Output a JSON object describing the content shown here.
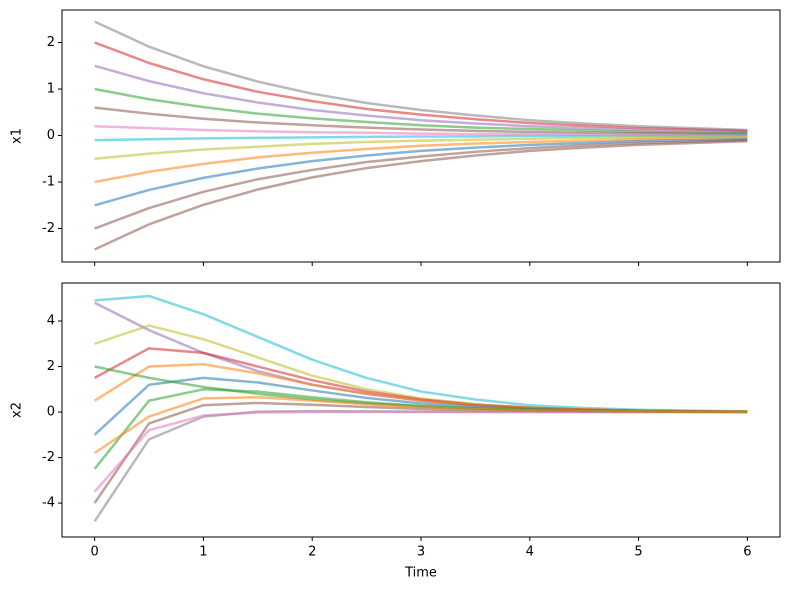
{
  "chart_data": [
    {
      "type": "line",
      "ylabel": "x1",
      "show_xtick_labels": false,
      "x": [
        0,
        0.5,
        1,
        1.5,
        2,
        2.5,
        3,
        3.5,
        4,
        4.5,
        5,
        5.5,
        6
      ],
      "xlim": [
        -0.3,
        6.3
      ],
      "xticks": [
        0,
        1,
        2,
        3,
        4,
        5,
        6
      ],
      "ylim": [
        -2.72,
        2.7
      ],
      "yticks": [
        -2,
        -1,
        0,
        1,
        2
      ],
      "series": [
        {
          "color": "#7f7f7f",
          "values": [
            2.45,
            1.91,
            1.49,
            1.16,
            0.9,
            0.7,
            0.55,
            0.43,
            0.33,
            0.26,
            0.2,
            0.16,
            0.12
          ]
        },
        {
          "color": "#d62728",
          "values": [
            2.0,
            1.56,
            1.21,
            0.94,
            0.74,
            0.57,
            0.45,
            0.35,
            0.27,
            0.21,
            0.16,
            0.13,
            0.1
          ]
        },
        {
          "color": "#9467bd",
          "values": [
            1.5,
            1.17,
            0.91,
            0.71,
            0.55,
            0.43,
            0.33,
            0.26,
            0.2,
            0.16,
            0.12,
            0.1,
            0.08
          ]
        },
        {
          "color": "#2ca02c",
          "values": [
            1.0,
            0.78,
            0.61,
            0.47,
            0.37,
            0.29,
            0.22,
            0.17,
            0.14,
            0.11,
            0.08,
            0.06,
            0.05
          ]
        },
        {
          "color": "#8c564b",
          "values": [
            0.6,
            0.47,
            0.36,
            0.28,
            0.22,
            0.17,
            0.13,
            0.1,
            0.08,
            0.06,
            0.05,
            0.04,
            0.03
          ]
        },
        {
          "color": "#e377c2",
          "values": [
            0.2,
            0.16,
            0.12,
            0.09,
            0.07,
            0.06,
            0.04,
            0.03,
            0.03,
            0.02,
            0.02,
            0.01,
            0.01
          ]
        },
        {
          "color": "#17becf",
          "values": [
            -0.1,
            -0.08,
            -0.06,
            -0.05,
            -0.04,
            -0.03,
            -0.02,
            -0.02,
            -0.01,
            -0.01,
            -0.01,
            -0.01,
            0
          ]
        },
        {
          "color": "#bcbd22",
          "values": [
            -0.5,
            -0.39,
            -0.3,
            -0.24,
            -0.18,
            -0.14,
            -0.11,
            -0.09,
            -0.07,
            -0.05,
            -0.04,
            -0.03,
            -0.03
          ]
        },
        {
          "color": "#ff7f0e",
          "values": [
            -1.0,
            -0.78,
            -0.61,
            -0.47,
            -0.37,
            -0.29,
            -0.22,
            -0.17,
            -0.14,
            -0.11,
            -0.08,
            -0.06,
            -0.05
          ]
        },
        {
          "color": "#1f77b4",
          "values": [
            -1.5,
            -1.17,
            -0.91,
            -0.71,
            -0.55,
            -0.43,
            -0.33,
            -0.26,
            -0.2,
            -0.16,
            -0.12,
            -0.1,
            -0.08
          ]
        },
        {
          "color": "#8c564b",
          "values": [
            -2.0,
            -1.56,
            -1.21,
            -0.94,
            -0.74,
            -0.57,
            -0.45,
            -0.35,
            -0.27,
            -0.21,
            -0.16,
            -0.13,
            -0.1
          ]
        },
        {
          "color": "#8c564b",
          "values": [
            -2.45,
            -1.91,
            -1.49,
            -1.16,
            -0.9,
            -0.7,
            -0.55,
            -0.43,
            -0.33,
            -0.26,
            -0.2,
            -0.16,
            -0.12
          ]
        }
      ]
    },
    {
      "type": "line",
      "ylabel": "x2",
      "xlabel": "Time",
      "show_xtick_labels": true,
      "x": [
        0,
        0.5,
        1,
        1.5,
        2,
        2.5,
        3,
        3.5,
        4,
        4.5,
        5,
        5.5,
        6
      ],
      "xlim": [
        -0.3,
        6.3
      ],
      "xticks": [
        0,
        1,
        2,
        3,
        4,
        5,
        6
      ],
      "ylim": [
        -5.49,
        5.67
      ],
      "yticks": [
        -4,
        -2,
        0,
        2,
        4
      ],
      "series": [
        {
          "color": "#17becf",
          "values": [
            4.9,
            5.1,
            4.3,
            3.3,
            2.3,
            1.5,
            0.9,
            0.55,
            0.3,
            0.18,
            0.1,
            0.06,
            0.03
          ]
        },
        {
          "color": "#9467bd",
          "values": [
            4.8,
            3.6,
            2.6,
            1.8,
            1.2,
            0.8,
            0.5,
            0.3,
            0.18,
            0.1,
            0.06,
            0.03,
            0.02
          ]
        },
        {
          "color": "#bcbd22",
          "values": [
            3.0,
            3.8,
            3.2,
            2.4,
            1.6,
            1.0,
            0.6,
            0.35,
            0.2,
            0.12,
            0.07,
            0.04,
            0.02
          ]
        },
        {
          "color": "#d62728",
          "values": [
            1.5,
            2.8,
            2.6,
            2.0,
            1.4,
            0.9,
            0.55,
            0.32,
            0.19,
            0.11,
            0.06,
            0.03,
            0.02
          ]
        },
        {
          "color": "#ff7f0e",
          "values": [
            0.5,
            2.0,
            2.1,
            1.7,
            1.2,
            0.8,
            0.5,
            0.3,
            0.17,
            0.1,
            0.06,
            0.03,
            0.02
          ]
        },
        {
          "color": "#1f77b4",
          "values": [
            -1.0,
            1.2,
            1.5,
            1.3,
            0.95,
            0.62,
            0.38,
            0.23,
            0.13,
            0.08,
            0.04,
            0.02,
            0.01
          ]
        },
        {
          "color": "#2ca02c",
          "values": [
            -2.5,
            0.5,
            1.0,
            0.9,
            0.65,
            0.43,
            0.27,
            0.16,
            0.09,
            0.05,
            0.03,
            0.02,
            0.01
          ]
        },
        {
          "color": "#8c564b",
          "values": [
            -4.0,
            -0.5,
            0.3,
            0.4,
            0.32,
            0.22,
            0.14,
            0.08,
            0.05,
            0.03,
            0.02,
            0.01,
            0
          ]
        },
        {
          "color": "#7f7f7f",
          "values": [
            -4.8,
            -1.2,
            -0.2,
            0.02,
            0.04,
            0.03,
            0.02,
            0.01,
            0.01,
            0,
            0,
            0,
            0
          ]
        },
        {
          "color": "#e377c2",
          "values": [
            -3.5,
            -0.8,
            -0.15,
            -0.02,
            0,
            0,
            0,
            0,
            0,
            0,
            0,
            0,
            0
          ]
        },
        {
          "color": "#2ca02c",
          "values": [
            2.0,
            1.5,
            1.1,
            0.8,
            0.55,
            0.38,
            0.25,
            0.16,
            0.1,
            0.06,
            0.04,
            0.02,
            0.01
          ]
        },
        {
          "color": "#ff7f0e",
          "values": [
            -1.8,
            -0.2,
            0.6,
            0.65,
            0.5,
            0.34,
            0.22,
            0.13,
            0.08,
            0.05,
            0.03,
            0.01,
            0.01
          ]
        }
      ]
    }
  ]
}
